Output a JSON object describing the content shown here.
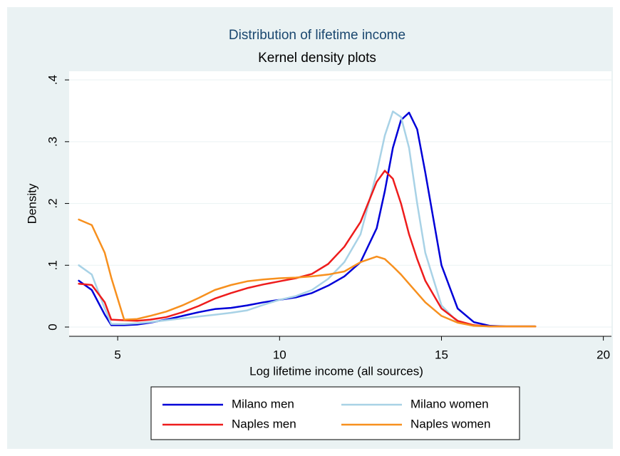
{
  "chart_data": {
    "type": "line",
    "title": "Distribution of lifetime income",
    "subtitle": "Kernel density plots",
    "x_label": "Log lifetime income (all sources)",
    "y_label": "Density",
    "x": [
      3.8,
      4.2,
      4.6,
      4.8,
      5.2,
      5.6,
      6,
      6.5,
      7,
      7.5,
      8,
      8.5,
      9,
      9.5,
      10,
      10.5,
      11,
      11.5,
      12,
      12.5,
      13,
      13.25,
      13.5,
      13.75,
      14,
      14.25,
      14.5,
      15,
      15.5,
      16,
      16.5,
      17,
      17.9
    ],
    "series": [
      {
        "name": "Milano men",
        "color": "#0000d8",
        "values": [
          0.075,
          0.06,
          0.02,
          0.003,
          0.003,
          0.004,
          0.007,
          0.012,
          0.018,
          0.024,
          0.029,
          0.031,
          0.035,
          0.04,
          0.044,
          0.048,
          0.055,
          0.067,
          0.082,
          0.105,
          0.16,
          0.22,
          0.29,
          0.335,
          0.347,
          0.32,
          0.25,
          0.1,
          0.03,
          0.008,
          0.002,
          0.001,
          0.001
        ]
      },
      {
        "name": "Milano women",
        "color": "#a8d2e6",
        "values": [
          0.1,
          0.085,
          0.03,
          0.005,
          0.005,
          0.006,
          0.008,
          0.011,
          0.014,
          0.017,
          0.02,
          0.023,
          0.027,
          0.036,
          0.044,
          0.05,
          0.06,
          0.078,
          0.105,
          0.15,
          0.25,
          0.31,
          0.349,
          0.34,
          0.29,
          0.2,
          0.12,
          0.035,
          0.008,
          0.002,
          0.001,
          0.001,
          0.001
        ]
      },
      {
        "name": "Naples men",
        "color": "#ee1c1c",
        "values": [
          0.07,
          0.068,
          0.04,
          0.012,
          0.011,
          0.01,
          0.012,
          0.016,
          0.024,
          0.034,
          0.046,
          0.055,
          0.063,
          0.069,
          0.074,
          0.079,
          0.086,
          0.102,
          0.13,
          0.17,
          0.235,
          0.253,
          0.24,
          0.2,
          0.15,
          0.11,
          0.075,
          0.03,
          0.01,
          0.003,
          0.001,
          0.001,
          0.001
        ]
      },
      {
        "name": "Naples women",
        "color": "#f7901e",
        "values": [
          0.174,
          0.165,
          0.12,
          0.08,
          0.012,
          0.013,
          0.018,
          0.025,
          0.035,
          0.047,
          0.06,
          0.068,
          0.074,
          0.077,
          0.079,
          0.08,
          0.082,
          0.085,
          0.09,
          0.105,
          0.114,
          0.11,
          0.098,
          0.085,
          0.07,
          0.055,
          0.04,
          0.018,
          0.007,
          0.002,
          0.001,
          0.001,
          0.001
        ]
      }
    ],
    "xlim": [
      3.5,
      20.25
    ],
    "xticks": [
      5,
      10,
      15,
      20
    ],
    "ylim": [
      -0.015,
      0.414
    ],
    "yticks": [
      0,
      {
        "value": 0.1,
        "label": ".1"
      },
      {
        "value": 0.2,
        "label": ".2"
      },
      {
        "value": 0.3,
        "label": ".3"
      },
      {
        "value": 0.4,
        "label": ".4"
      }
    ],
    "grid": true,
    "legend": "bottom"
  }
}
